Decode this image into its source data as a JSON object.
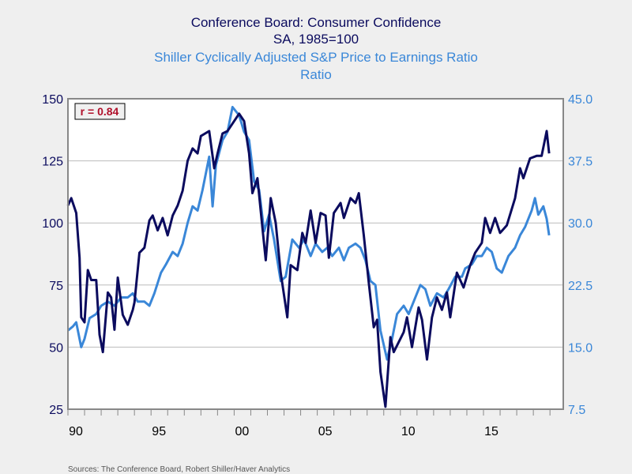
{
  "chart_data": {
    "type": "line",
    "titles": [
      {
        "text": "Conference Board: Consumer Confidence",
        "color": "#0b0b5e"
      },
      {
        "text": "SA, 1985=100",
        "color": "#0b0b5e"
      },
      {
        "text": "Shiller Cyclically Adjusted S&P Price to Earnings Ratio",
        "color": "#3a87d8"
      },
      {
        "text": "Ratio",
        "color": "#3a87d8"
      }
    ],
    "annotation": "r = 0.84",
    "annotation_color": "#b0102a",
    "source": "Sources:  The Conference Board, Robert Shiller/Haver Analytics",
    "xlim": [
      1990,
      2019.8
    ],
    "x_ticks": [
      {
        "value": 1990,
        "label": "90"
      },
      {
        "value": 1995,
        "label": "95"
      },
      {
        "value": 2000,
        "label": "00"
      },
      {
        "value": 2005,
        "label": "05"
      },
      {
        "value": 2010,
        "label": "10"
      },
      {
        "value": 2015,
        "label": "15"
      }
    ],
    "y_left": {
      "lim": [
        25,
        150
      ],
      "ticks": [
        "150",
        "125",
        "100",
        "75",
        "50",
        "25"
      ],
      "color": "#0b0b5e"
    },
    "y_right": {
      "lim": [
        7.5,
        45
      ],
      "ticks": [
        "45.0",
        "37.5",
        "30.0",
        "22.5",
        "15.0",
        "7.5"
      ],
      "color": "#3a87d8"
    },
    "grid": true,
    "series": [
      {
        "axis": "left",
        "color": "#0b0b5e",
        "points": [
          [
            1990.0,
            107
          ],
          [
            1990.2,
            110
          ],
          [
            1990.5,
            104
          ],
          [
            1990.7,
            86
          ],
          [
            1990.8,
            62
          ],
          [
            1991.0,
            60
          ],
          [
            1991.2,
            81
          ],
          [
            1991.4,
            77
          ],
          [
            1991.7,
            77
          ],
          [
            1991.9,
            55
          ],
          [
            1992.1,
            48
          ],
          [
            1992.4,
            72
          ],
          [
            1992.6,
            70
          ],
          [
            1992.8,
            57
          ],
          [
            1993.0,
            78
          ],
          [
            1993.3,
            63
          ],
          [
            1993.6,
            59
          ],
          [
            1993.9,
            65
          ],
          [
            1994.0,
            68
          ],
          [
            1994.3,
            88
          ],
          [
            1994.6,
            90
          ],
          [
            1994.9,
            101
          ],
          [
            1995.1,
            103
          ],
          [
            1995.4,
            97
          ],
          [
            1995.7,
            102
          ],
          [
            1996.0,
            95
          ],
          [
            1996.3,
            103
          ],
          [
            1996.6,
            107
          ],
          [
            1996.9,
            113
          ],
          [
            1997.2,
            125
          ],
          [
            1997.5,
            130
          ],
          [
            1997.8,
            128
          ],
          [
            1998.0,
            135
          ],
          [
            1998.5,
            137
          ],
          [
            1998.8,
            122
          ],
          [
            1999.0,
            128
          ],
          [
            1999.3,
            136
          ],
          [
            1999.6,
            137
          ],
          [
            1999.9,
            140
          ],
          [
            2000.3,
            144
          ],
          [
            2000.6,
            141
          ],
          [
            2000.9,
            128
          ],
          [
            2001.1,
            112
          ],
          [
            2001.4,
            118
          ],
          [
            2001.7,
            98
          ],
          [
            2001.9,
            85
          ],
          [
            2002.2,
            110
          ],
          [
            2002.5,
            100
          ],
          [
            2002.8,
            80
          ],
          [
            2003.2,
            62
          ],
          [
            2003.4,
            83
          ],
          [
            2003.8,
            81
          ],
          [
            2004.1,
            96
          ],
          [
            2004.3,
            92
          ],
          [
            2004.6,
            105
          ],
          [
            2004.9,
            92
          ],
          [
            2005.2,
            104
          ],
          [
            2005.5,
            103
          ],
          [
            2005.7,
            86
          ],
          [
            2006.0,
            104
          ],
          [
            2006.4,
            108
          ],
          [
            2006.6,
            102
          ],
          [
            2007.0,
            110
          ],
          [
            2007.3,
            108
          ],
          [
            2007.5,
            112
          ],
          [
            2007.8,
            95
          ],
          [
            2008.1,
            76
          ],
          [
            2008.4,
            58
          ],
          [
            2008.6,
            61
          ],
          [
            2008.8,
            40
          ],
          [
            2009.1,
            26
          ],
          [
            2009.4,
            54
          ],
          [
            2009.6,
            48
          ],
          [
            2009.9,
            52
          ],
          [
            2010.2,
            56
          ],
          [
            2010.4,
            62
          ],
          [
            2010.7,
            50
          ],
          [
            2011.1,
            66
          ],
          [
            2011.3,
            61
          ],
          [
            2011.6,
            45
          ],
          [
            2011.9,
            62
          ],
          [
            2012.2,
            70
          ],
          [
            2012.5,
            65
          ],
          [
            2012.8,
            72
          ],
          [
            2013.0,
            62
          ],
          [
            2013.4,
            80
          ],
          [
            2013.8,
            74
          ],
          [
            2014.2,
            83
          ],
          [
            2014.5,
            88
          ],
          [
            2014.9,
            92
          ],
          [
            2015.1,
            102
          ],
          [
            2015.4,
            96
          ],
          [
            2015.7,
            102
          ],
          [
            2016.0,
            96
          ],
          [
            2016.4,
            99
          ],
          [
            2016.9,
            110
          ],
          [
            2017.2,
            122
          ],
          [
            2017.4,
            118
          ],
          [
            2017.8,
            126
          ],
          [
            2018.2,
            127
          ],
          [
            2018.5,
            127
          ],
          [
            2018.8,
            137
          ],
          [
            2018.95,
            128
          ]
        ]
      },
      {
        "axis": "right",
        "color": "#3a87d8",
        "points": [
          [
            1990.0,
            17
          ],
          [
            1990.3,
            17.5
          ],
          [
            1990.5,
            18
          ],
          [
            1990.8,
            15
          ],
          [
            1991.0,
            16
          ],
          [
            1991.3,
            18.5
          ],
          [
            1991.7,
            19
          ],
          [
            1992.0,
            20
          ],
          [
            1992.4,
            20.5
          ],
          [
            1992.8,
            20
          ],
          [
            1993.2,
            21
          ],
          [
            1993.6,
            21
          ],
          [
            1993.9,
            21.5
          ],
          [
            1994.2,
            20.5
          ],
          [
            1994.6,
            20.5
          ],
          [
            1994.9,
            20
          ],
          [
            1995.2,
            21.5
          ],
          [
            1995.6,
            24
          ],
          [
            1995.9,
            25
          ],
          [
            1996.3,
            26.5
          ],
          [
            1996.6,
            26
          ],
          [
            1996.9,
            27.5
          ],
          [
            1997.2,
            30
          ],
          [
            1997.5,
            32
          ],
          [
            1997.8,
            31.5
          ],
          [
            1998.1,
            34
          ],
          [
            1998.5,
            38
          ],
          [
            1998.7,
            32
          ],
          [
            1998.9,
            37
          ],
          [
            1999.3,
            40
          ],
          [
            1999.6,
            41
          ],
          [
            1999.9,
            44
          ],
          [
            2000.3,
            43
          ],
          [
            2000.6,
            41
          ],
          [
            2000.9,
            40
          ],
          [
            2001.2,
            35
          ],
          [
            2001.5,
            34
          ],
          [
            2001.8,
            29
          ],
          [
            2002.1,
            31
          ],
          [
            2002.4,
            28
          ],
          [
            2002.8,
            23
          ],
          [
            2003.1,
            23.5
          ],
          [
            2003.5,
            28
          ],
          [
            2003.9,
            27
          ],
          [
            2004.2,
            28
          ],
          [
            2004.6,
            26
          ],
          [
            2004.9,
            27.5
          ],
          [
            2005.3,
            26.5
          ],
          [
            2005.6,
            27
          ],
          [
            2005.9,
            26
          ],
          [
            2006.3,
            27
          ],
          [
            2006.6,
            25.5
          ],
          [
            2006.9,
            27
          ],
          [
            2007.3,
            27.5
          ],
          [
            2007.6,
            27
          ],
          [
            2007.9,
            25.5
          ],
          [
            2008.2,
            23
          ],
          [
            2008.5,
            22.5
          ],
          [
            2008.8,
            17
          ],
          [
            2009.2,
            13.5
          ],
          [
            2009.5,
            16
          ],
          [
            2009.8,
            19
          ],
          [
            2010.2,
            20
          ],
          [
            2010.5,
            19
          ],
          [
            2010.8,
            20.5
          ],
          [
            2011.2,
            22.5
          ],
          [
            2011.5,
            22
          ],
          [
            2011.8,
            20
          ],
          [
            2012.2,
            21.5
          ],
          [
            2012.6,
            21
          ],
          [
            2012.9,
            22
          ],
          [
            2013.3,
            23.5
          ],
          [
            2013.7,
            23.5
          ],
          [
            2013.9,
            24.5
          ],
          [
            2014.3,
            25
          ],
          [
            2014.6,
            26
          ],
          [
            2014.9,
            26
          ],
          [
            2015.2,
            27
          ],
          [
            2015.5,
            26.5
          ],
          [
            2015.8,
            24.5
          ],
          [
            2016.1,
            24
          ],
          [
            2016.5,
            26
          ],
          [
            2016.9,
            27
          ],
          [
            2017.2,
            28.5
          ],
          [
            2017.5,
            29.5
          ],
          [
            2017.9,
            31.5
          ],
          [
            2018.1,
            33
          ],
          [
            2018.3,
            31
          ],
          [
            2018.6,
            32
          ],
          [
            2018.8,
            30.5
          ],
          [
            2018.95,
            28.5
          ]
        ]
      }
    ]
  }
}
